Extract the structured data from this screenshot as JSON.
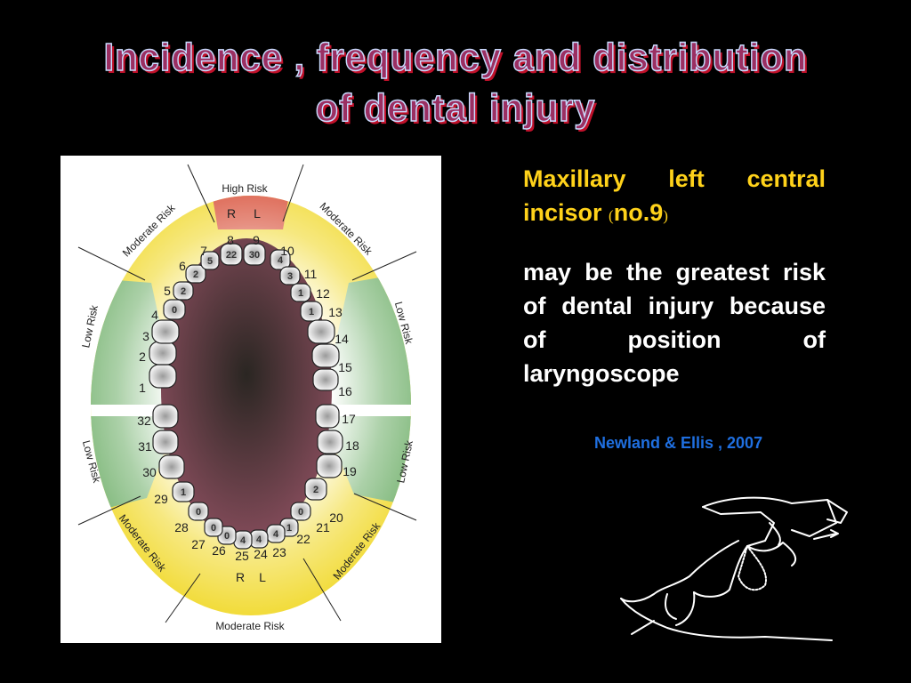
{
  "title": {
    "line1": "Incidence , frequency and distribution",
    "line2": "of dental injury"
  },
  "figure": {
    "high_risk": "High Risk",
    "moderate_risk": "Moderate Risk",
    "low_risk": "Low Risk",
    "right": "R",
    "left": "L",
    "zone_colors": {
      "high": "#d9553f",
      "moderate": "#f2dc3c",
      "low": "#7fb87a"
    },
    "teeth": [
      {
        "number": "1",
        "injuries": ""
      },
      {
        "number": "2",
        "injuries": ""
      },
      {
        "number": "3",
        "injuries": ""
      },
      {
        "number": "4",
        "injuries": "0"
      },
      {
        "number": "5",
        "injuries": "2"
      },
      {
        "number": "6",
        "injuries": "2"
      },
      {
        "number": "7",
        "injuries": "5"
      },
      {
        "number": "8",
        "injuries": "22"
      },
      {
        "number": "9",
        "injuries": "30"
      },
      {
        "number": "10",
        "injuries": "4"
      },
      {
        "number": "11",
        "injuries": "3"
      },
      {
        "number": "12",
        "injuries": "1"
      },
      {
        "number": "13",
        "injuries": "1"
      },
      {
        "number": "14",
        "injuries": ""
      },
      {
        "number": "15",
        "injuries": ""
      },
      {
        "number": "16",
        "injuries": ""
      },
      {
        "number": "17",
        "injuries": ""
      },
      {
        "number": "18",
        "injuries": ""
      },
      {
        "number": "19",
        "injuries": ""
      },
      {
        "number": "20",
        "injuries": "2"
      },
      {
        "number": "21",
        "injuries": "0"
      },
      {
        "number": "22",
        "injuries": "1"
      },
      {
        "number": "23",
        "injuries": "4"
      },
      {
        "number": "24",
        "injuries": "4"
      },
      {
        "number": "25",
        "injuries": "4"
      },
      {
        "number": "26",
        "injuries": "0"
      },
      {
        "number": "27",
        "injuries": "0"
      },
      {
        "number": "28",
        "injuries": "0"
      },
      {
        "number": "29",
        "injuries": "1"
      },
      {
        "number": "30",
        "injuries": ""
      },
      {
        "number": "31",
        "injuries": ""
      },
      {
        "number": "32",
        "injuries": ""
      }
    ]
  },
  "text": {
    "heading_main": "Maxillary left central incisor",
    "heading_open": "(",
    "heading_no": "no.9",
    "heading_close": ")",
    "body": "may be the greatest risk of dental injury because of position of laryngoscope",
    "citation": "Newland & Ellis , 2007"
  }
}
